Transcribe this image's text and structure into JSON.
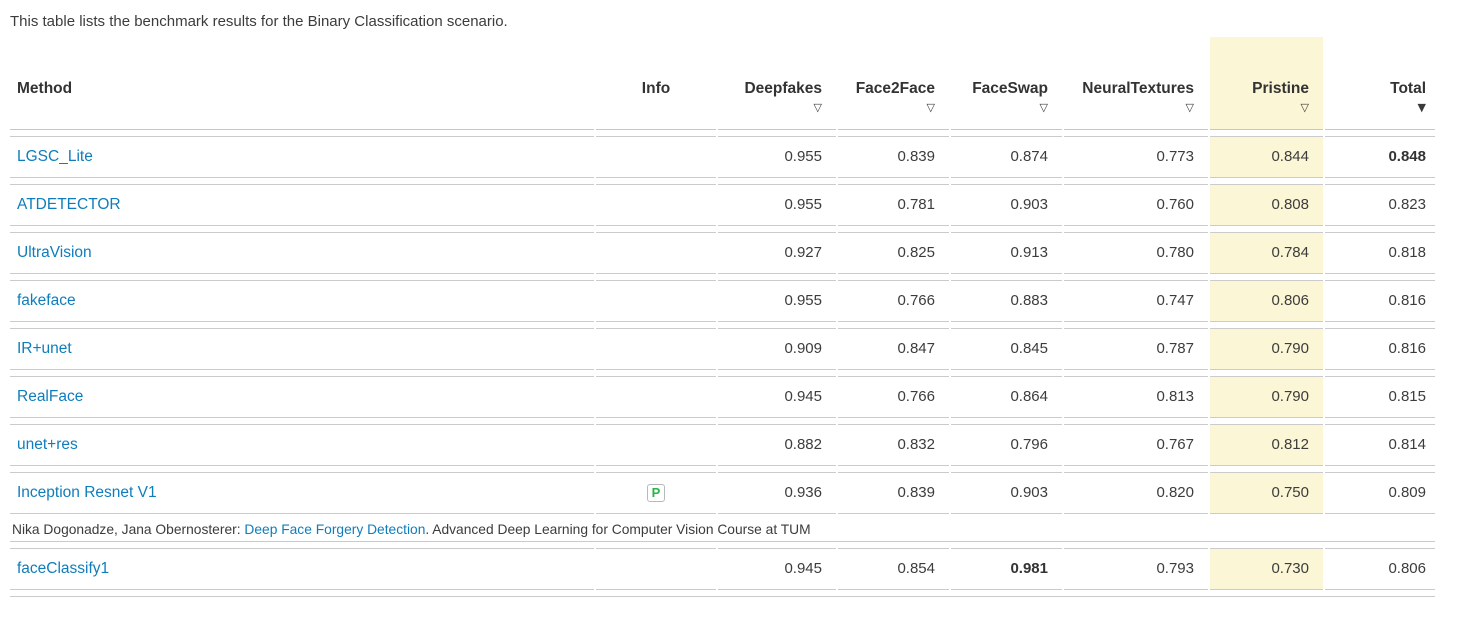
{
  "page": {
    "intro": "This table lists the benchmark results for the Binary Classification scenario."
  },
  "colors": {
    "link_blue": "#0f7dbb",
    "pristine_highlight": "#fbf6d5",
    "row_border": "#cbcbcb",
    "badge_green": "#28b446"
  },
  "table": {
    "sort_arrows": {
      "inactive": "▽",
      "active": "▼"
    },
    "columns": [
      {
        "label": "Method",
        "sortable": false
      },
      {
        "label": "Info",
        "sortable": false
      },
      {
        "label": "Deepfakes",
        "sortable": true,
        "sort_state": "inactive"
      },
      {
        "label": "Face2Face",
        "sortable": true,
        "sort_state": "inactive"
      },
      {
        "label": "FaceSwap",
        "sortable": true,
        "sort_state": "inactive"
      },
      {
        "label": "NeuralTextures",
        "sortable": true,
        "sort_state": "inactive"
      },
      {
        "label": "Pristine",
        "sortable": true,
        "sort_state": "inactive",
        "highlighted": true
      },
      {
        "label": "Total",
        "sortable": true,
        "sort_state": "active-desc"
      }
    ],
    "info_badge": {
      "label": "P",
      "meaning": "published"
    },
    "rows": [
      {
        "method": "LGSC_Lite",
        "deepfakes": "0.955",
        "face2face": "0.839",
        "faceswap": "0.874",
        "neuraltextures": "0.773",
        "pristine": "0.844",
        "total": "0.848"
      },
      {
        "method": "ATDETECTOR",
        "deepfakes": "0.955",
        "face2face": "0.781",
        "faceswap": "0.903",
        "neuraltextures": "0.760",
        "pristine": "0.808",
        "total": "0.823"
      },
      {
        "method": "UltraVision",
        "deepfakes": "0.927",
        "face2face": "0.825",
        "faceswap": "0.913",
        "neuraltextures": "0.780",
        "pristine": "0.784",
        "total": "0.818"
      },
      {
        "method": "fakeface",
        "deepfakes": "0.955",
        "face2face": "0.766",
        "faceswap": "0.883",
        "neuraltextures": "0.747",
        "pristine": "0.806",
        "total": "0.816"
      },
      {
        "method": "IR+unet",
        "deepfakes": "0.909",
        "face2face": "0.847",
        "faceswap": "0.845",
        "neuraltextures": "0.787",
        "pristine": "0.790",
        "total": "0.816"
      },
      {
        "method": "RealFace",
        "deepfakes": "0.945",
        "face2face": "0.766",
        "faceswap": "0.864",
        "neuraltextures": "0.813",
        "pristine": "0.790",
        "total": "0.815"
      },
      {
        "method": "unet+res",
        "deepfakes": "0.882",
        "face2face": "0.832",
        "faceswap": "0.796",
        "neuraltextures": "0.767",
        "pristine": "0.812",
        "total": "0.814"
      },
      {
        "method": "Inception Resnet V1",
        "deepfakes": "0.936",
        "face2face": "0.839",
        "faceswap": "0.903",
        "neuraltextures": "0.820",
        "pristine": "0.750",
        "total": "0.809",
        "has_badge": true
      },
      {
        "method": "faceClassify1",
        "deepfakes": "0.945",
        "face2face": "0.854",
        "faceswap": "0.981",
        "neuraltextures": "0.793",
        "pristine": "0.730",
        "total": "0.806"
      }
    ],
    "citation": {
      "prefix": "Nika Dogonadze, Jana Obernosterer: ",
      "link_text": "Deep Face Forgery Detection",
      "suffix": ". Advanced Deep Learning for Computer Vision Course at TUM"
    }
  }
}
